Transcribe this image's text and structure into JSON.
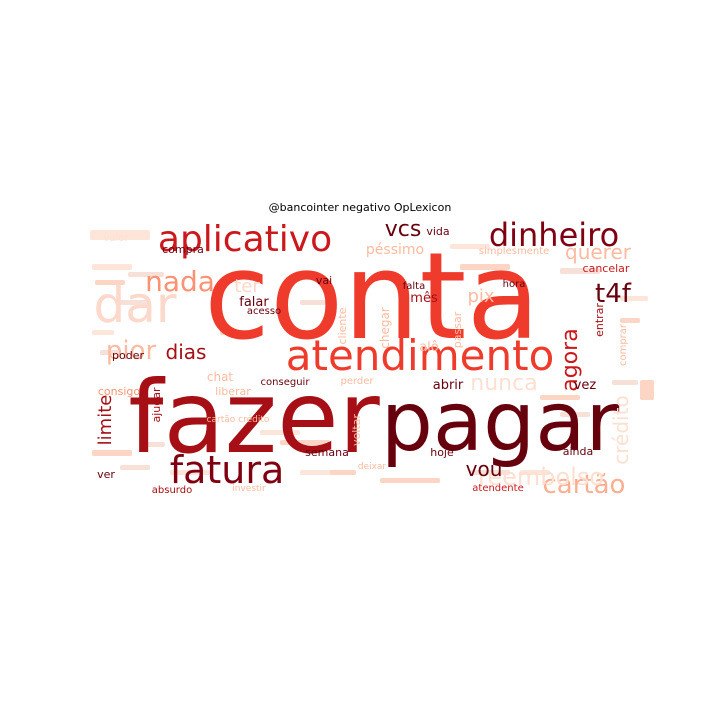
{
  "chart_data": {
    "type": "wordcloud",
    "title": "@bancointer negativo OpLexicon",
    "colormap": "Reds",
    "words": [
      {
        "text": "conta",
        "weight": 100,
        "color": "#ef3b2c"
      },
      {
        "text": "fazer",
        "weight": 88,
        "color": "#a50f15"
      },
      {
        "text": "pagar",
        "weight": 78,
        "color": "#67000d"
      },
      {
        "text": "atendimento",
        "weight": 42,
        "color": "#ef3b2c"
      },
      {
        "text": "fatura",
        "weight": 36,
        "color": "#7f0011"
      },
      {
        "text": "aplicativo",
        "weight": 35,
        "color": "#cb181d"
      },
      {
        "text": "dinheiro",
        "weight": 31,
        "color": "#7f0011"
      },
      {
        "text": "dar",
        "weight": 38,
        "color": "#fdd8cb"
      },
      {
        "text": "nada",
        "weight": 22,
        "color": "#fc9272"
      },
      {
        "text": "pior",
        "weight": 20,
        "color": "#fcbba1"
      },
      {
        "text": "vcs",
        "weight": 21,
        "color": "#67000d"
      },
      {
        "text": "t4f",
        "weight": 21,
        "color": "#67000d"
      },
      {
        "text": "cartão",
        "weight": 22,
        "color": "#fcae91"
      },
      {
        "text": "reembolso",
        "weight": 18,
        "color": "#fee0d2"
      },
      {
        "text": "agora",
        "weight": 18,
        "color": "#cb181d"
      },
      {
        "text": "querer",
        "weight": 17,
        "color": "#fcbba1"
      },
      {
        "text": "dias",
        "weight": 15,
        "color": "#a50f15"
      },
      {
        "text": "limite",
        "weight": 15,
        "color": "#a50f15"
      },
      {
        "text": "vou",
        "weight": 15,
        "color": "#67000d"
      },
      {
        "text": "pix",
        "weight": 14,
        "color": "#fcbba1"
      },
      {
        "text": "nunca",
        "weight": 15,
        "color": "#fee0d2"
      },
      {
        "text": "crédito",
        "weight": 14,
        "color": "#fee0d2"
      },
      {
        "text": "ter",
        "weight": 14,
        "color": "#fdd8cb"
      },
      {
        "text": "péssimo",
        "weight": 11,
        "color": "#fcbba1"
      },
      {
        "text": "cancelar",
        "weight": 10,
        "color": "#cb181d"
      },
      {
        "text": "chegar",
        "weight": 10,
        "color": "#fcbba1"
      },
      {
        "text": "cliente",
        "weight": 9,
        "color": "#fcbba1"
      },
      {
        "text": "mês",
        "weight": 10,
        "color": "#a50f15"
      },
      {
        "text": "alô",
        "weight": 10,
        "color": "#fcbba1"
      },
      {
        "text": "falar",
        "weight": 10,
        "color": "#67000d"
      },
      {
        "text": "poder",
        "weight": 9,
        "color": "#67000d"
      },
      {
        "text": "passar",
        "weight": 9,
        "color": "#fcbba1"
      },
      {
        "text": "entrar",
        "weight": 9,
        "color": "#a50f15"
      },
      {
        "text": "comprar",
        "weight": 8,
        "color": "#fcbba1"
      },
      {
        "text": "vida",
        "weight": 9,
        "color": "#67000d"
      },
      {
        "text": "compra",
        "weight": 9,
        "color": "#67000d"
      },
      {
        "text": "consigo",
        "weight": 9,
        "color": "#fc9272"
      },
      {
        "text": "liberar",
        "weight": 9,
        "color": "#fcbba1"
      },
      {
        "text": "vai",
        "weight": 9,
        "color": "#67000d"
      },
      {
        "text": "falta",
        "weight": 8,
        "color": "#67000d"
      },
      {
        "text": "simplesmente",
        "weight": 8,
        "color": "#fcbba1"
      },
      {
        "text": "hora",
        "weight": 8,
        "color": "#67000d"
      },
      {
        "text": "acesso",
        "weight": 8,
        "color": "#67000d"
      },
      {
        "text": "abrir",
        "weight": 10,
        "color": "#67000d"
      },
      {
        "text": "vez",
        "weight": 10,
        "color": "#67000d"
      },
      {
        "text": "chat",
        "weight": 9,
        "color": "#fcbba1"
      },
      {
        "text": "conseguir",
        "weight": 8,
        "color": "#67000d"
      },
      {
        "text": "perder",
        "weight": 8,
        "color": "#fcbba1"
      },
      {
        "text": "ajudar",
        "weight": 9,
        "color": "#a50f15"
      },
      {
        "text": "voltar",
        "weight": 9,
        "color": "#fcbba1"
      },
      {
        "text": "semana",
        "weight": 9,
        "color": "#67000d"
      },
      {
        "text": "hoje",
        "weight": 9,
        "color": "#67000d"
      },
      {
        "text": "ainda",
        "weight": 9,
        "color": "#67000d"
      },
      {
        "text": "ver",
        "weight": 9,
        "color": "#67000d"
      },
      {
        "text": "cartão crédito",
        "weight": 8,
        "color": "#fcbba1"
      },
      {
        "text": "deixar",
        "weight": 8,
        "color": "#fcbba1"
      },
      {
        "text": "atendente",
        "weight": 8,
        "color": "#cb181d"
      },
      {
        "text": "absurdo",
        "weight": 8,
        "color": "#a50f15"
      },
      {
        "text": "investir",
        "weight": 8,
        "color": "#fcbba1"
      },
      {
        "text": "valor",
        "weight": 8,
        "color": "#fee0d2"
      }
    ]
  }
}
